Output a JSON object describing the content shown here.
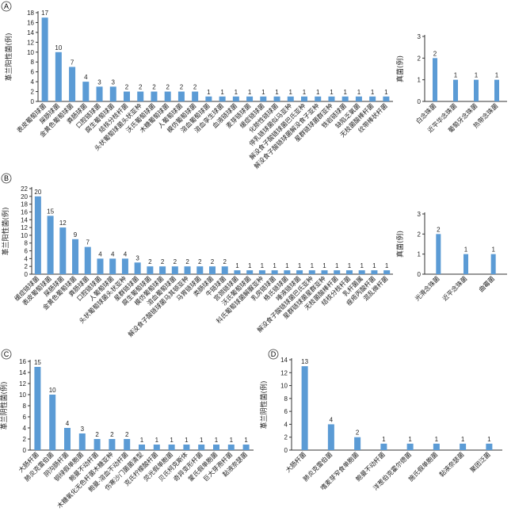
{
  "chart_data": [
    {
      "panel": "A",
      "type": "bar",
      "ylabel": "革兰阳性菌(例)",
      "ylim": [
        0,
        18
      ],
      "categories": [
        "表皮葡萄球菌",
        "屎肠球菌",
        "金黄色葡萄球菌",
        "粪肠球菌",
        "口腔链球菌",
        "腐生葡萄球菌",
        "结核分枝杆菌",
        "头状葡萄球菌头状亚种",
        "沃氏葡萄球菌",
        "木糖葡萄球菌",
        "人葡萄球菌",
        "模仿葡萄球菌",
        "溶血葡萄球菌",
        "溶血孪生球菌",
        "血液链球菌",
        "麦芽链球菌",
        "缓症链球菌",
        "化脓性链球菌",
        "停乳链球菌似马亚种",
        "解没食子酸链球菌巴氏亚种",
        "解没食子酸链球菌解没食子亚种",
        "星群链球菌群亚种",
        "铁岩链球菌",
        "缺陷乏氧菌",
        "无枝菌酸棒杆菌",
        "纹带棒状杆菌"
      ],
      "values": [
        17,
        10,
        7,
        4,
        3,
        3,
        2,
        2,
        2,
        2,
        2,
        2,
        1,
        1,
        1,
        1,
        1,
        1,
        1,
        1,
        1,
        1,
        1,
        1,
        1,
        1
      ]
    },
    {
      "panel": "A-fungi",
      "type": "bar",
      "ylabel": "真菌(例)",
      "ylim": [
        0,
        3
      ],
      "categories": [
        "白念珠菌",
        "近平华念珠菌",
        "葡萄牙念珠菌",
        "热带念珠菌"
      ],
      "values": [
        2,
        1,
        1,
        1
      ]
    },
    {
      "panel": "B",
      "type": "bar",
      "ylabel": "革兰阳性菌(例)",
      "ylim": [
        0,
        22
      ],
      "categories": [
        "缓症链球菌",
        "表皮葡萄球菌",
        "屎肠球菌",
        "金黄色葡萄球菌",
        "粪肠球菌",
        "口腔链球菌",
        "人葡萄球菌",
        "头状葡萄球菌头状亚种",
        "星群链球菌",
        "腐生葡萄球菌",
        "模仿葡萄球菌",
        "溶血葡萄球菌",
        "解没食子酸链球菌马其顿亚种",
        "马胃链球菌",
        "类肠球菌",
        "牛链球菌",
        "宫颈链球菌",
        "沃氏葡萄球菌",
        "科氏葡萄球菌解脲亚种",
        "乳房链球菌",
        "格氏链球菌",
        "唾液链球菌",
        "解没食子酸链球菌巴氏亚种",
        "星群链球菌星群亚种",
        "无枝菌酸棒杆菌",
        "结核分枝杆菌",
        "乳杆菌属",
        "痤疮丙酸杆菌",
        "混乱微杆菌"
      ],
      "values": [
        20,
        15,
        12,
        9,
        7,
        4,
        4,
        4,
        3,
        2,
        2,
        2,
        2,
        2,
        2,
        2,
        1,
        1,
        1,
        1,
        1,
        1,
        1,
        1,
        1,
        1,
        1,
        1,
        1
      ]
    },
    {
      "panel": "B-fungi",
      "type": "bar",
      "ylabel": "真菌(例)",
      "ylim": [
        0,
        3
      ],
      "categories": [
        "光滑念珠菌",
        "近平念珠菌",
        "曲霉菌"
      ],
      "values": [
        2,
        1,
        1
      ]
    },
    {
      "panel": "C",
      "type": "bar",
      "ylabel": "革兰阴性菌(例)",
      "ylim": [
        0,
        16
      ],
      "categories": [
        "大肠杆菌",
        "肺炎克雷伯菌",
        "阴沟肠杆菌",
        "铜绿假单胞菌",
        "鲍曼不动杆菌",
        "木糖氧化无色杆菌木糖亚种",
        "鲍曼-溶血不动杆菌",
        "伤寒沙门菌菌清型",
        "克氏柠檬酸杆菌",
        "荧光假单胞菌",
        "贝氏柯克斯体",
        "奇异变形杆菌",
        "蒙氏假单胞菌",
        "巨大芽孢杆菌",
        "黏液奈瑟菌"
      ],
      "values": [
        15,
        10,
        4,
        3,
        2,
        2,
        2,
        1,
        1,
        1,
        1,
        1,
        1,
        1,
        1
      ]
    },
    {
      "panel": "D",
      "type": "bar",
      "ylabel": "革兰阴性菌(例)",
      "ylim": [
        0,
        14
      ],
      "categories": [
        "大肠杆菌",
        "肺炎克雷伯菌",
        "嗜麦芽窄食单胞菌",
        "鲍曼不动杆菌",
        "洋葱伯克霍尔德菌",
        "施氏假单胞菌",
        "黏液奈瑟菌",
        "聚团泛菌"
      ],
      "values": [
        13,
        4,
        2,
        1,
        1,
        1,
        1,
        1
      ]
    }
  ],
  "panel_labels": [
    "A",
    "B",
    "C",
    "D"
  ],
  "colors": {
    "bar": "#5b9bd5",
    "axis": "#333333"
  }
}
